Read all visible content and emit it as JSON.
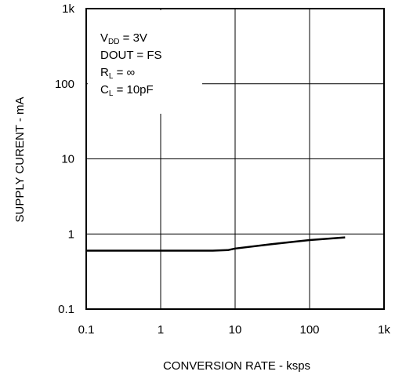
{
  "chart_data": {
    "type": "line",
    "title": "",
    "xlabel": "CONVERSION RATE - ksps",
    "ylabel": "SUPPLY CURENT - mA",
    "x_scale": "log",
    "y_scale": "log",
    "xlim": [
      0.1,
      1000
    ],
    "ylim": [
      0.1,
      1000
    ],
    "x_ticks": [
      {
        "value": 0.1,
        "label": "0.1"
      },
      {
        "value": 1,
        "label": "1"
      },
      {
        "value": 10,
        "label": "10"
      },
      {
        "value": 100,
        "label": "100"
      },
      {
        "value": 1000,
        "label": "1k"
      }
    ],
    "y_ticks": [
      {
        "value": 0.1,
        "label": "0.1"
      },
      {
        "value": 1,
        "label": "1"
      },
      {
        "value": 10,
        "label": "10"
      },
      {
        "value": 100,
        "label": "100"
      },
      {
        "value": 1000,
        "label": "1k"
      }
    ],
    "grid": true,
    "line_color": "#000000",
    "series": [
      {
        "x": [
          0.1,
          1,
          5,
          8,
          10,
          30,
          100,
          300
        ],
        "y": [
          0.6,
          0.6,
          0.6,
          0.61,
          0.64,
          0.73,
          0.83,
          0.9
        ]
      }
    ],
    "annotations": [
      {
        "main": "V",
        "sub": "DD",
        "rest": " = 3V"
      },
      {
        "main": "DOUT = FS",
        "sub": "",
        "rest": ""
      },
      {
        "main": "R",
        "sub": "L",
        "rest": " = ∞"
      },
      {
        "main": "C",
        "sub": "L",
        "rest": " = 10pF"
      }
    ]
  }
}
